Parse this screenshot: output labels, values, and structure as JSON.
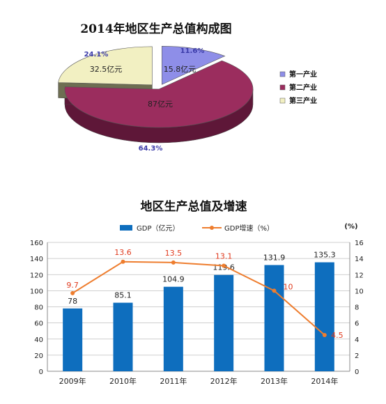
{
  "chart_data": [
    {
      "type": "pie",
      "title": "2014年地区生产总值构成图",
      "slices": [
        {
          "name": "第一产业",
          "value": 15.8,
          "value_label": "15.8亿元",
          "percent_label": "11.6%",
          "color": "#8E8EE8",
          "side": "#4F4F9A"
        },
        {
          "name": "第二产业",
          "value": 87,
          "value_label": "87亿元",
          "percent_label": "64.3%",
          "color": "#9B2D5E",
          "side": "#5E1738"
        },
        {
          "name": "第三产业",
          "value": 32.5,
          "value_label": "32.5亿元",
          "percent_label": "24.1%",
          "color": "#F2F0C2",
          "side": "#6E6E52"
        }
      ],
      "legend_position": "right",
      "percent_label_color": "#3A3AA8"
    },
    {
      "type": "bar+line",
      "title": "地区生产总值及增速",
      "categories": [
        "2009年",
        "2010年",
        "2011年",
        "2012年",
        "2013年",
        "2014年"
      ],
      "series": [
        {
          "name": "GDP（亿元）",
          "type": "bar",
          "axis": "left",
          "color": "#0E6EBE",
          "label_color": "#222222",
          "values": [
            78,
            85.1,
            104.9,
            119.6,
            131.9,
            135.3
          ],
          "labels": [
            "78",
            "85.1",
            "104.9",
            "119.6",
            "131.9",
            "135.3"
          ]
        },
        {
          "name": "GDP增速（%）",
          "type": "line",
          "axis": "right",
          "color": "#EE7D2E",
          "label_color": "#E03A1E",
          "values": [
            9.7,
            13.6,
            13.5,
            13.1,
            10,
            4.5
          ],
          "labels": [
            "9.7",
            "13.6",
            "13.5",
            "13.1",
            "10",
            "4.5"
          ]
        }
      ],
      "y_left": {
        "min": 0,
        "max": 160,
        "step": 20,
        "ticks": [
          "0",
          "20",
          "40",
          "60",
          "80",
          "100",
          "120",
          "140",
          "160"
        ]
      },
      "y_right": {
        "min": 0,
        "max": 16,
        "step": 2,
        "unit_label": "(%)",
        "ticks": [
          "0",
          "2",
          "4",
          "6",
          "8",
          "10",
          "12",
          "14",
          "16"
        ]
      },
      "grid": true,
      "legend_position": "top"
    }
  ]
}
